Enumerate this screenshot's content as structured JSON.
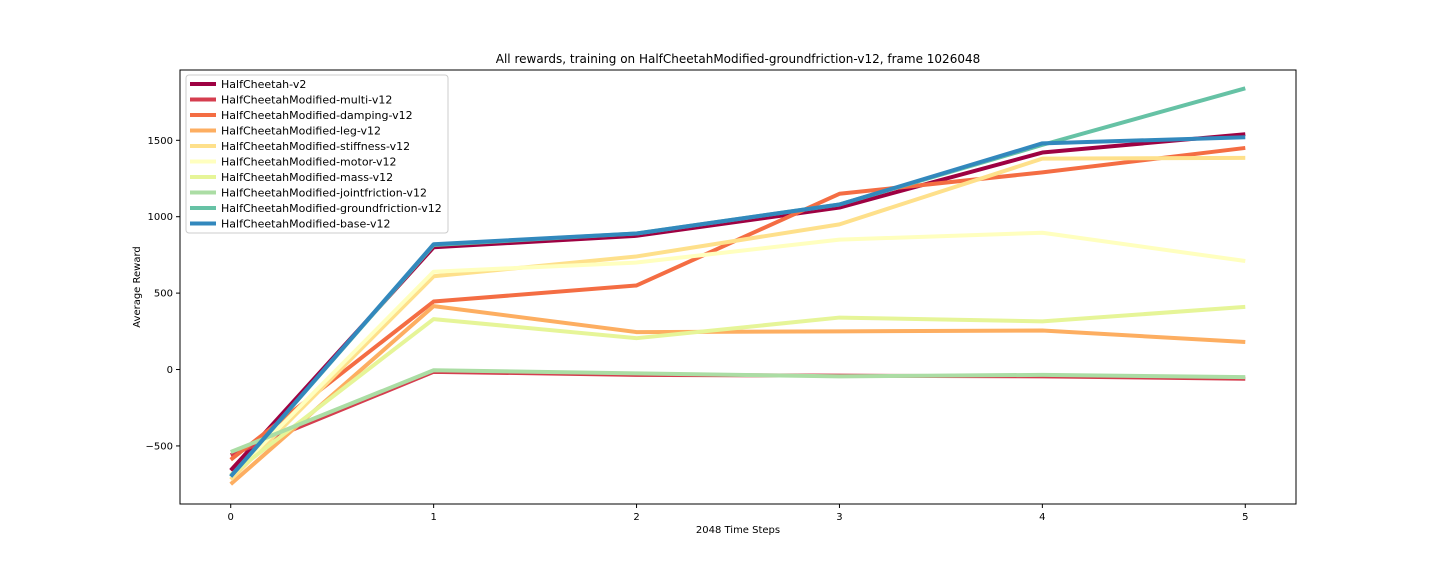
{
  "chart_data": {
    "type": "line",
    "title": "All rewards, training on HalfCheetahModified-groundfriction-v12, frame 1026048",
    "xlabel": "2048 Time Steps",
    "ylabel": "Average Reward",
    "x": [
      0,
      1,
      2,
      3,
      4,
      5
    ],
    "xlim": [
      -0.25,
      5.25
    ],
    "ylim": [
      -880,
      1960
    ],
    "xticks": [
      0,
      1,
      2,
      3,
      4,
      5
    ],
    "yticks": [
      -500,
      0,
      500,
      1000,
      1500
    ],
    "ytick_labels": [
      "−500",
      "0",
      "500",
      "1000",
      "1500"
    ],
    "grid": false,
    "legend_position": "top-left",
    "series": [
      {
        "name": "HalfCheetah-v2",
        "color": "#9e0142",
        "values": [
          -660,
          800,
          875,
          1060,
          1420,
          1540
        ]
      },
      {
        "name": "HalfCheetahModified-multi-v12",
        "color": "#d53e4f",
        "values": [
          -560,
          -15,
          -35,
          -40,
          -45,
          -60
        ]
      },
      {
        "name": "HalfCheetahModified-damping-v12",
        "color": "#f46d43",
        "values": [
          -590,
          445,
          550,
          1150,
          1290,
          1450
        ]
      },
      {
        "name": "HalfCheetahModified-leg-v12",
        "color": "#fdae61",
        "values": [
          -750,
          415,
          245,
          250,
          255,
          180
        ]
      },
      {
        "name": "HalfCheetahModified-stiffness-v12",
        "color": "#fee08b",
        "values": [
          -720,
          610,
          740,
          950,
          1380,
          1385
        ]
      },
      {
        "name": "HalfCheetahModified-motor-v12",
        "color": "#ffffbf",
        "values": [
          -700,
          640,
          700,
          850,
          895,
          710
        ]
      },
      {
        "name": "HalfCheetahModified-mass-v12",
        "color": "#e6f598",
        "values": [
          -690,
          330,
          205,
          340,
          315,
          410
        ]
      },
      {
        "name": "HalfCheetahModified-jointfriction-v12",
        "color": "#abdda4",
        "values": [
          -540,
          -5,
          -25,
          -45,
          -35,
          -50
        ]
      },
      {
        "name": "HalfCheetahModified-groundfriction-v12",
        "color": "#66c2a5",
        "values": [
          -700,
          815,
          890,
          1080,
          1470,
          1840
        ]
      },
      {
        "name": "HalfCheetahModified-base-v12",
        "color": "#3288bd",
        "values": [
          -700,
          820,
          890,
          1080,
          1480,
          1520
        ]
      }
    ]
  }
}
